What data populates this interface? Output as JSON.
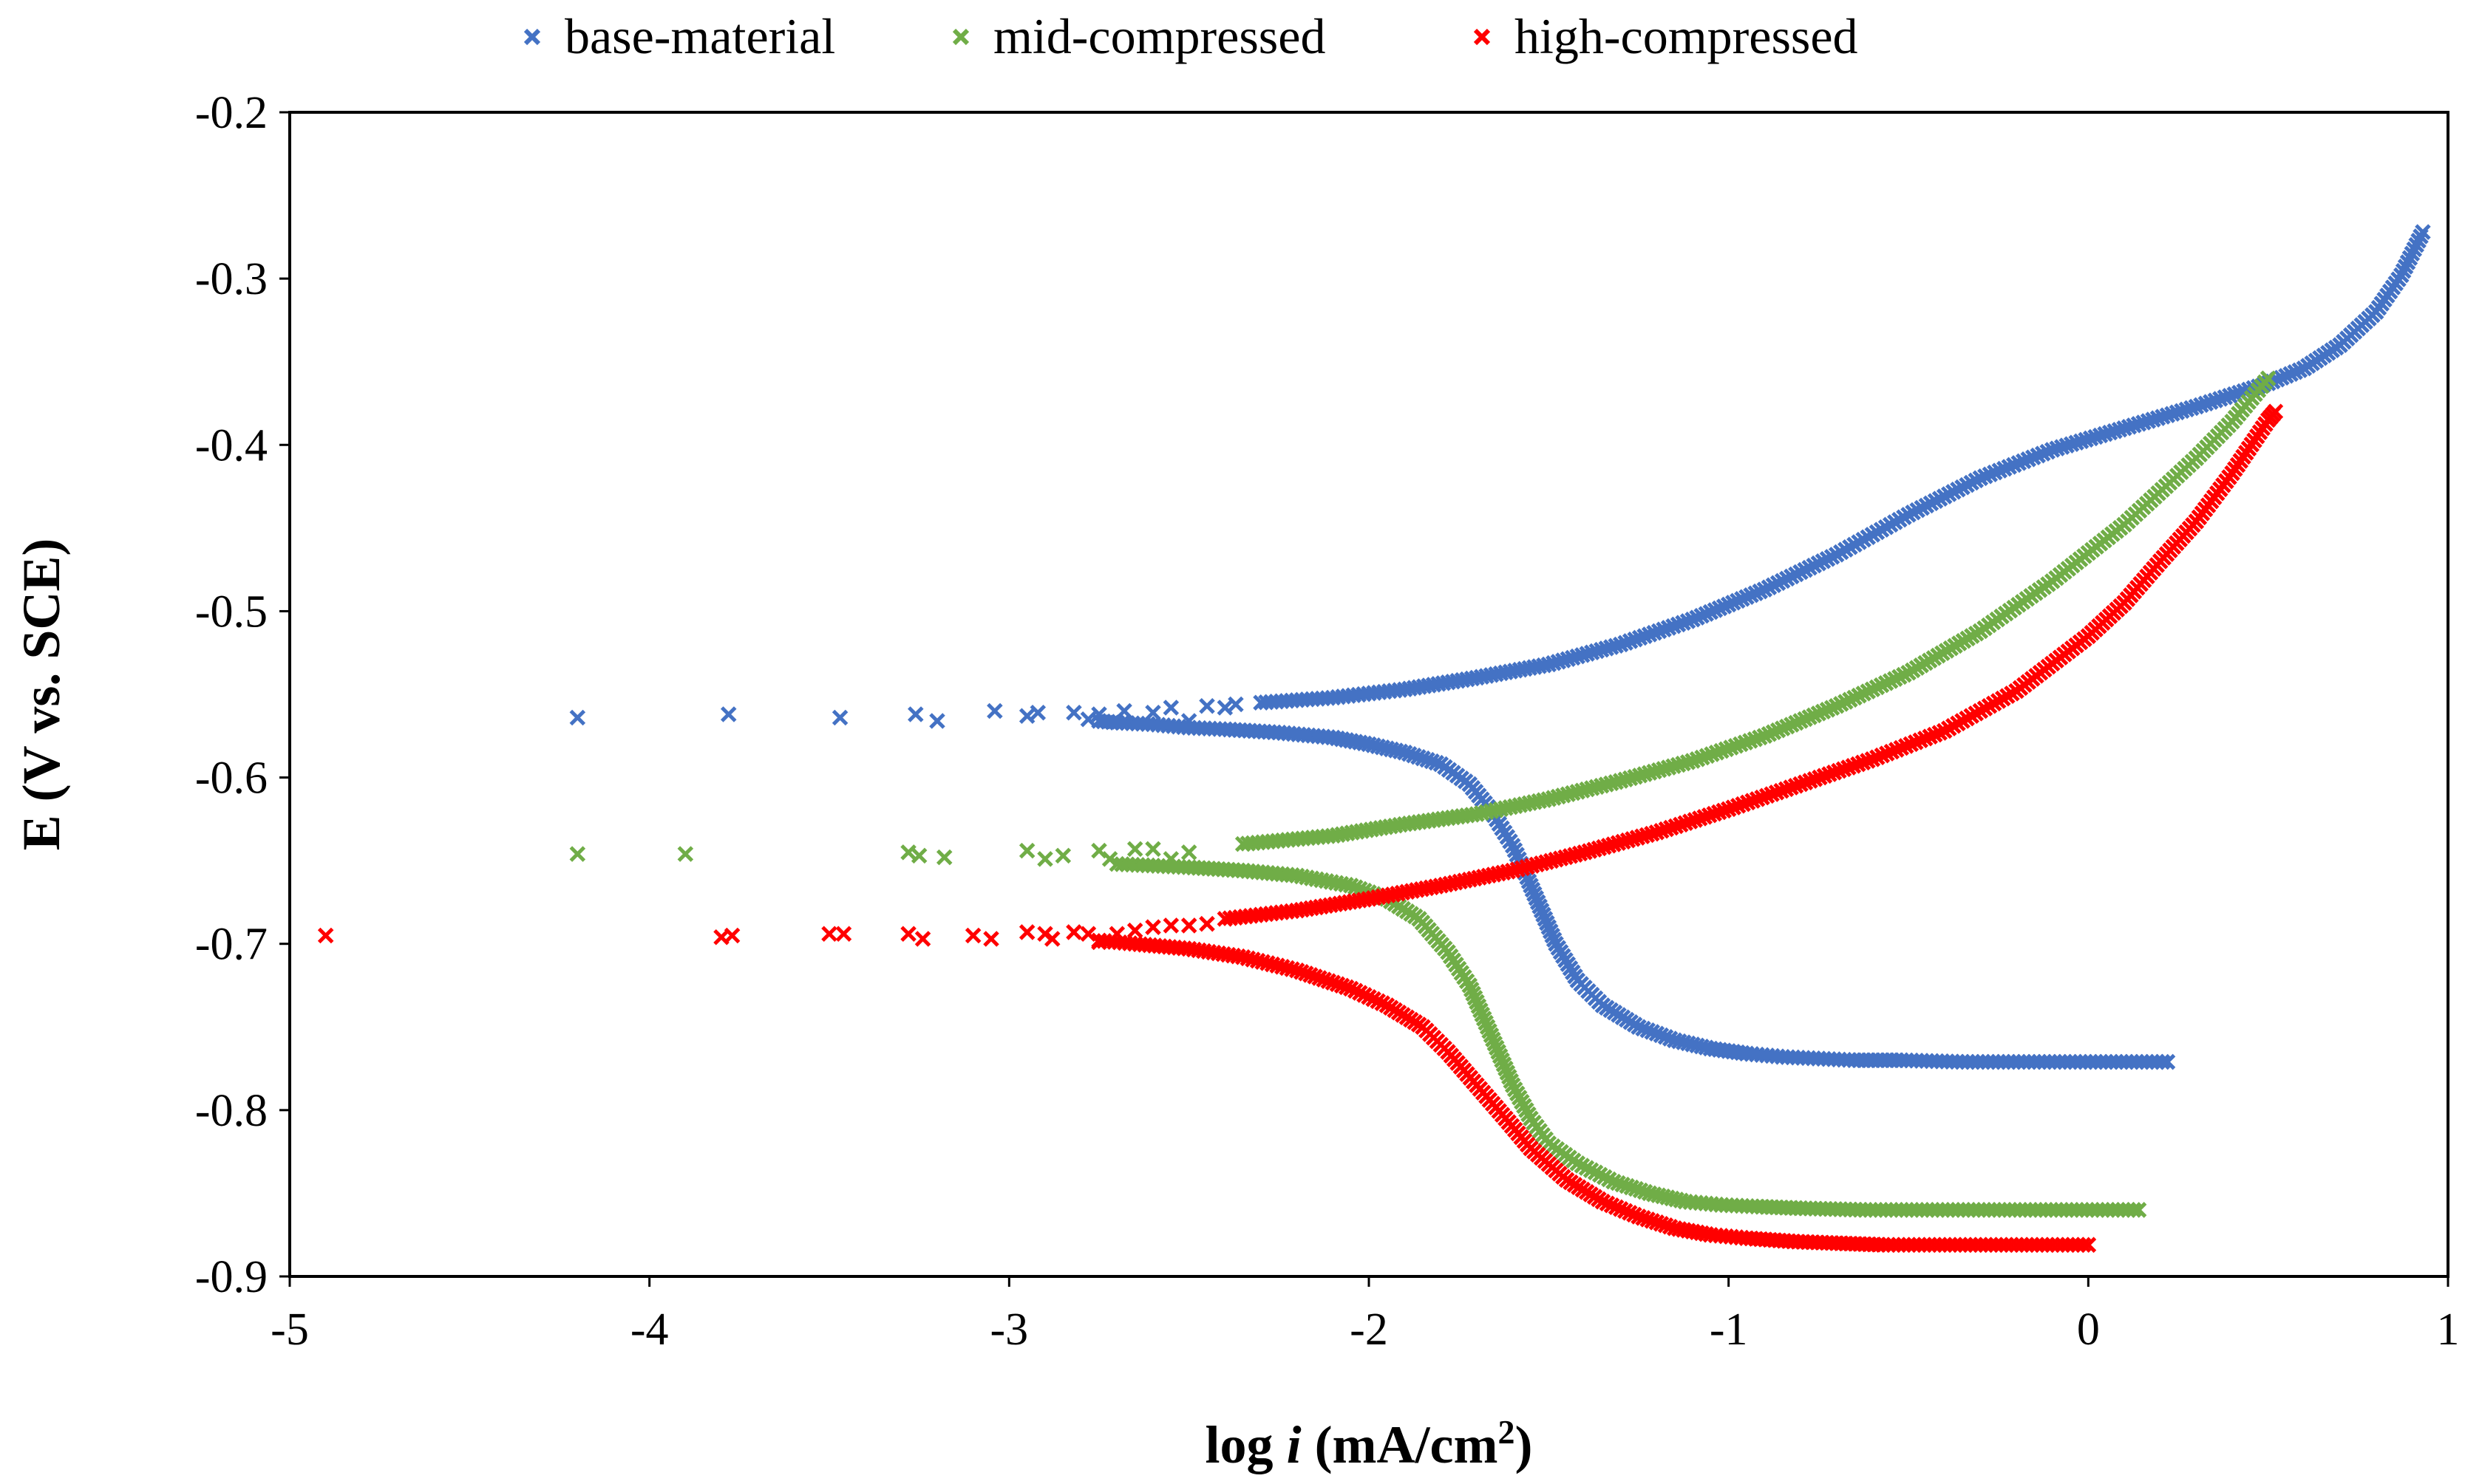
{
  "chart_data": {
    "type": "scatter",
    "title": "",
    "xlabel_prefix": "log ",
    "xlabel_var": "i",
    "xlabel_units": " (mA/cm",
    "xlabel_sup": "2",
    "xlabel_close": ")",
    "ylabel": "E (V vs. SCE)",
    "xlim": [
      -5,
      1
    ],
    "ylim": [
      -0.9,
      -0.2
    ],
    "xticks": [
      -5,
      -4,
      -3,
      -2,
      -1,
      0,
      1
    ],
    "xtick_labels": [
      "-5",
      "-4",
      "-3",
      "-2",
      "-1",
      "0",
      "1"
    ],
    "yticks": [
      -0.2,
      -0.3,
      -0.4,
      -0.5,
      -0.6,
      -0.7,
      -0.8,
      -0.9
    ],
    "ytick_labels": [
      "-0.2",
      "-0.3",
      "-0.4",
      "-0.5",
      "-0.6",
      "-0.7",
      "-0.8",
      "-0.9"
    ],
    "grid": false,
    "legend_position": "top",
    "series": [
      {
        "name": "base-material",
        "color": "#4472C4",
        "cathodic": [
          [
            0.22,
            -0.771
          ],
          [
            -0.35,
            -0.771
          ],
          [
            -0.52,
            -0.77
          ],
          [
            -0.65,
            -0.77
          ],
          [
            -0.75,
            -0.769
          ],
          [
            -0.85,
            -0.768
          ],
          [
            -0.95,
            -0.766
          ],
          [
            -1.05,
            -0.763
          ],
          [
            -1.15,
            -0.758
          ],
          [
            -1.25,
            -0.75
          ],
          [
            -1.35,
            -0.737
          ],
          [
            -1.42,
            -0.722
          ],
          [
            -1.48,
            -0.7
          ],
          [
            -1.52,
            -0.68
          ],
          [
            -1.56,
            -0.66
          ],
          [
            -1.6,
            -0.641
          ],
          [
            -1.66,
            -0.62
          ],
          [
            -1.72,
            -0.604
          ],
          [
            -1.8,
            -0.592
          ],
          [
            -1.9,
            -0.585
          ],
          [
            -2.0,
            -0.58
          ],
          [
            -2.1,
            -0.576
          ],
          [
            -2.25,
            -0.573
          ],
          [
            -2.4,
            -0.571
          ],
          [
            -2.5,
            -0.57
          ],
          [
            -2.6,
            -0.568
          ],
          [
            -2.7,
            -0.567
          ],
          [
            -2.75,
            -0.566
          ]
        ],
        "anodic": [
          [
            -2.3,
            -0.555
          ],
          [
            -2.1,
            -0.552
          ],
          [
            -1.9,
            -0.547
          ],
          [
            -1.7,
            -0.54
          ],
          [
            -1.5,
            -0.532
          ],
          [
            -1.3,
            -0.52
          ],
          [
            -1.1,
            -0.505
          ],
          [
            -0.9,
            -0.487
          ],
          [
            -0.7,
            -0.466
          ],
          [
            -0.5,
            -0.442
          ],
          [
            -0.3,
            -0.42
          ],
          [
            -0.1,
            -0.403
          ],
          [
            0.1,
            -0.39
          ],
          [
            0.3,
            -0.377
          ],
          [
            0.5,
            -0.363
          ],
          [
            0.6,
            -0.354
          ],
          [
            0.7,
            -0.34
          ],
          [
            0.8,
            -0.32
          ],
          [
            0.87,
            -0.298
          ],
          [
            0.93,
            -0.272
          ]
        ],
        "scatter": [
          [
            -4.2,
            -0.564
          ],
          [
            -3.78,
            -0.562
          ],
          [
            -3.47,
            -0.564
          ],
          [
            -3.26,
            -0.562
          ],
          [
            -3.2,
            -0.566
          ],
          [
            -3.04,
            -0.56
          ],
          [
            -2.95,
            -0.563
          ],
          [
            -2.92,
            -0.561
          ],
          [
            -2.82,
            -0.561
          ],
          [
            -2.78,
            -0.565
          ],
          [
            -2.75,
            -0.562
          ],
          [
            -2.68,
            -0.56
          ],
          [
            -2.6,
            -0.561
          ],
          [
            -2.55,
            -0.558
          ],
          [
            -2.5,
            -0.566
          ],
          [
            -2.45,
            -0.557
          ],
          [
            -2.4,
            -0.558
          ],
          [
            -2.37,
            -0.556
          ]
        ]
      },
      {
        "name": "mid-compressed",
        "color": "#70AD47",
        "cathodic": [
          [
            0.14,
            -0.86
          ],
          [
            -0.62,
            -0.86
          ],
          [
            -0.8,
            -0.859
          ],
          [
            -0.92,
            -0.858
          ],
          [
            -1.02,
            -0.857
          ],
          [
            -1.12,
            -0.855
          ],
          [
            -1.22,
            -0.85
          ],
          [
            -1.32,
            -0.843
          ],
          [
            -1.42,
            -0.832
          ],
          [
            -1.5,
            -0.82
          ],
          [
            -1.55,
            -0.805
          ],
          [
            -1.6,
            -0.785
          ],
          [
            -1.64,
            -0.765
          ],
          [
            -1.68,
            -0.745
          ],
          [
            -1.72,
            -0.725
          ],
          [
            -1.78,
            -0.705
          ],
          [
            -1.86,
            -0.685
          ],
          [
            -1.95,
            -0.673
          ],
          [
            -2.05,
            -0.665
          ],
          [
            -2.2,
            -0.659
          ],
          [
            -2.35,
            -0.656
          ],
          [
            -2.5,
            -0.654
          ],
          [
            -2.6,
            -0.653
          ],
          [
            -2.7,
            -0.652
          ]
        ],
        "anodic": [
          [
            -2.35,
            -0.64
          ],
          [
            -2.1,
            -0.635
          ],
          [
            -1.9,
            -0.628
          ],
          [
            -1.7,
            -0.622
          ],
          [
            -1.5,
            -0.613
          ],
          [
            -1.3,
            -0.602
          ],
          [
            -1.1,
            -0.59
          ],
          [
            -0.9,
            -0.575
          ],
          [
            -0.7,
            -0.557
          ],
          [
            -0.5,
            -0.537
          ],
          [
            -0.3,
            -0.512
          ],
          [
            -0.1,
            -0.482
          ],
          [
            0.1,
            -0.448
          ],
          [
            0.3,
            -0.408
          ],
          [
            0.4,
            -0.386
          ],
          [
            0.5,
            -0.36
          ]
        ],
        "scatter": [
          [
            -4.2,
            -0.646
          ],
          [
            -3.9,
            -0.646
          ],
          [
            -3.28,
            -0.645
          ],
          [
            -3.25,
            -0.647
          ],
          [
            -3.18,
            -0.648
          ],
          [
            -2.95,
            -0.644
          ],
          [
            -2.9,
            -0.649
          ],
          [
            -2.85,
            -0.647
          ],
          [
            -2.75,
            -0.644
          ],
          [
            -2.72,
            -0.649
          ],
          [
            -2.65,
            -0.643
          ],
          [
            -2.6,
            -0.643
          ],
          [
            -2.55,
            -0.649
          ],
          [
            -2.5,
            -0.645
          ]
        ]
      },
      {
        "name": "high-compressed",
        "color": "#FF0000",
        "cathodic": [
          [
            0.0,
            -0.881
          ],
          [
            -0.57,
            -0.881
          ],
          [
            -0.7,
            -0.88
          ],
          [
            -0.82,
            -0.879
          ],
          [
            -0.95,
            -0.877
          ],
          [
            -1.05,
            -0.875
          ],
          [
            -1.15,
            -0.871
          ],
          [
            -1.25,
            -0.864
          ],
          [
            -1.35,
            -0.855
          ],
          [
            -1.45,
            -0.842
          ],
          [
            -1.55,
            -0.823
          ],
          [
            -1.62,
            -0.805
          ],
          [
            -1.7,
            -0.785
          ],
          [
            -1.78,
            -0.765
          ],
          [
            -1.85,
            -0.75
          ],
          [
            -1.95,
            -0.737
          ],
          [
            -2.05,
            -0.727
          ],
          [
            -2.2,
            -0.716
          ],
          [
            -2.35,
            -0.708
          ],
          [
            -2.5,
            -0.703
          ],
          [
            -2.65,
            -0.7
          ],
          [
            -2.75,
            -0.698
          ]
        ],
        "anodic": [
          [
            -2.4,
            -0.685
          ],
          [
            -2.2,
            -0.68
          ],
          [
            -2.0,
            -0.673
          ],
          [
            -1.8,
            -0.665
          ],
          [
            -1.6,
            -0.656
          ],
          [
            -1.4,
            -0.645
          ],
          [
            -1.2,
            -0.633
          ],
          [
            -1.0,
            -0.619
          ],
          [
            -0.8,
            -0.604
          ],
          [
            -0.6,
            -0.589
          ],
          [
            -0.4,
            -0.572
          ],
          [
            -0.2,
            -0.548
          ],
          [
            0.0,
            -0.515
          ],
          [
            0.1,
            -0.495
          ],
          [
            0.2,
            -0.47
          ],
          [
            0.3,
            -0.446
          ],
          [
            0.4,
            -0.417
          ],
          [
            0.5,
            -0.385
          ],
          [
            0.52,
            -0.38
          ]
        ],
        "scatter": [
          [
            -4.9,
            -0.695
          ],
          [
            -3.8,
            -0.696
          ],
          [
            -3.77,
            -0.695
          ],
          [
            -3.5,
            -0.694
          ],
          [
            -3.46,
            -0.694
          ],
          [
            -3.28,
            -0.694
          ],
          [
            -3.24,
            -0.697
          ],
          [
            -3.1,
            -0.695
          ],
          [
            -3.05,
            -0.697
          ],
          [
            -2.95,
            -0.693
          ],
          [
            -2.9,
            -0.694
          ],
          [
            -2.88,
            -0.697
          ],
          [
            -2.82,
            -0.693
          ],
          [
            -2.78,
            -0.694
          ],
          [
            -2.75,
            -0.699
          ],
          [
            -2.7,
            -0.694
          ],
          [
            -2.65,
            -0.692
          ],
          [
            -2.6,
            -0.69
          ],
          [
            -2.55,
            -0.689
          ],
          [
            -2.5,
            -0.689
          ],
          [
            -2.45,
            -0.688
          ]
        ]
      }
    ]
  }
}
